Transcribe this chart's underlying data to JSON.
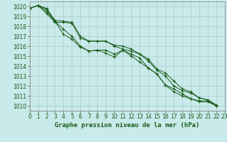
{
  "title": "Graphe pression niveau de la mer (hPa)",
  "background_color": "#c8eaea",
  "grid_color": "#b0c8c8",
  "line_color": "#1a5c1a",
  "marker_color": "#1a5c1a",
  "xlim": [
    0,
    23
  ],
  "ylim": [
    1009.5,
    1020.5
  ],
  "yticks": [
    1010,
    1011,
    1012,
    1013,
    1014,
    1015,
    1016,
    1017,
    1018,
    1019,
    1020
  ],
  "xticks": [
    0,
    1,
    2,
    3,
    4,
    5,
    6,
    7,
    8,
    9,
    10,
    11,
    12,
    13,
    14,
    15,
    16,
    17,
    18,
    19,
    20,
    21,
    22,
    23
  ],
  "series": [
    [
      1019.8,
      1020.1,
      1019.7,
      1018.5,
      1017.2,
      1016.7,
      1015.9,
      1015.5,
      1015.6,
      1015.3,
      1014.9,
      1015.6,
      1015.0,
      1014.4,
      1013.8,
      1013.2,
      1012.1,
      1011.4,
      1011.0,
      1010.7,
      1010.4,
      1010.4,
      1010.0
    ],
    [
      1019.8,
      1020.1,
      1019.5,
      1018.5,
      1017.7,
      1017.0,
      1016.0,
      1015.5,
      1015.6,
      1015.6,
      1015.2,
      1015.6,
      1015.2,
      1014.8,
      1013.8,
      1013.2,
      1012.1,
      1011.7,
      1011.2,
      1010.7,
      1010.5,
      1010.5,
      1010.0
    ],
    [
      1019.8,
      1020.1,
      1019.3,
      1018.4,
      1018.4,
      1018.3,
      1016.8,
      1016.5,
      1016.5,
      1016.5,
      1016.0,
      1015.7,
      1015.5,
      1015.2,
      1014.5,
      1013.6,
      1013.0,
      1012.0,
      1011.5,
      1011.3,
      1010.8,
      1010.6,
      1010.0
    ],
    [
      1019.8,
      1020.1,
      1019.8,
      1018.6,
      1018.5,
      1018.4,
      1017.0,
      1016.5,
      1016.5,
      1016.5,
      1016.1,
      1016.0,
      1015.7,
      1015.2,
      1014.7,
      1013.7,
      1013.3,
      1012.5,
      1011.7,
      1011.4,
      1010.8,
      1010.6,
      1010.1
    ]
  ],
  "tick_fontsize": 5.5,
  "xlabel_fontsize": 6.5
}
